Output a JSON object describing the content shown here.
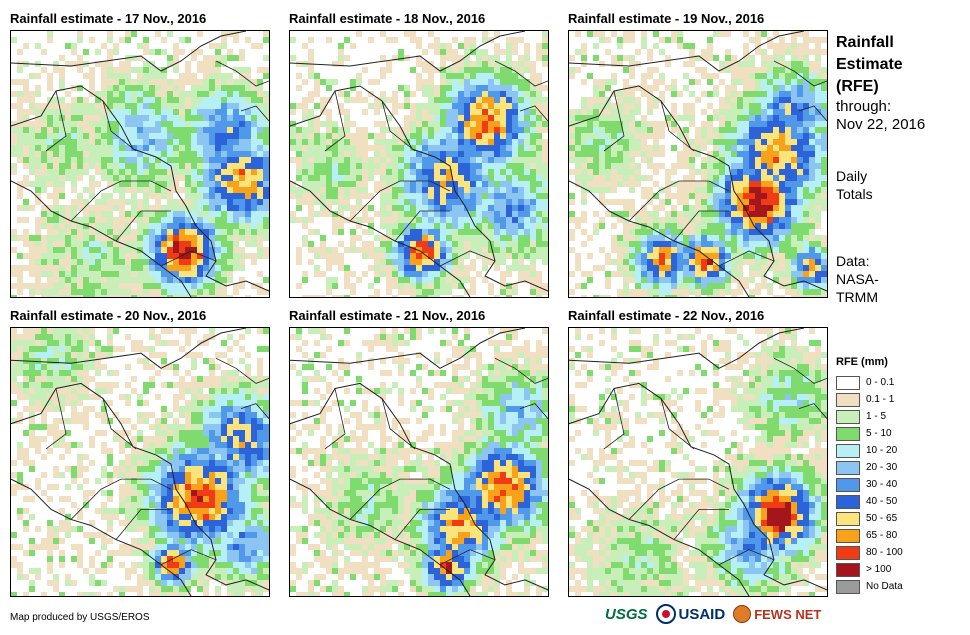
{
  "panels": [
    {
      "title": "Rainfall estimate - 17 Nov., 2016"
    },
    {
      "title": "Rainfall estimate - 18 Nov., 2016"
    },
    {
      "title": "Rainfall estimate - 19 Nov., 2016"
    },
    {
      "title": "Rainfall estimate - 20 Nov., 2016"
    },
    {
      "title": "Rainfall estimate - 21 Nov., 2016"
    },
    {
      "title": "Rainfall estimate - 22 Nov., 2016"
    }
  ],
  "side": {
    "title_lines": [
      "Rainfall",
      "Estimate",
      "(RFE)"
    ],
    "through_label": "through:",
    "through_date": "Nov 22, 2016",
    "daily_lines": [
      "Daily",
      "Totals"
    ],
    "data_lines": [
      "Data:",
      "NASA-",
      "TRMM"
    ]
  },
  "legend": {
    "title": "RFE (mm)",
    "items": [
      {
        "label": "0 - 0.1",
        "color": "#ffffff"
      },
      {
        "label": "0.1 - 1",
        "color": "#f1dfc1"
      },
      {
        "label": "1 - 5",
        "color": "#c8eeb9"
      },
      {
        "label": "5 - 10",
        "color": "#7fdb6e"
      },
      {
        "label": "10 - 20",
        "color": "#b6f0f6"
      },
      {
        "label": "20 - 30",
        "color": "#8cc4f2"
      },
      {
        "label": "30 - 40",
        "color": "#4f98ea"
      },
      {
        "label": "40 - 50",
        "color": "#2d63d8"
      },
      {
        "label": "50 - 65",
        "color": "#fbe47b"
      },
      {
        "label": "65 - 80",
        "color": "#f7a21a"
      },
      {
        "label": "80 - 100",
        "color": "#ef3b16"
      },
      {
        "label": "> 100",
        "color": "#a3171c"
      },
      {
        "label": "No Data",
        "color": "#9b9b9b"
      }
    ]
  },
  "credit": "Map produced by USGS/EROS",
  "logos": {
    "usgs": "USGS",
    "usaid": "USAID",
    "fews": "FEWS NET"
  },
  "rain_cells": [
    [
      {
        "lon": 0.66,
        "lat": 0.82,
        "level": 11,
        "spread": 0.1
      },
      {
        "lon": 0.88,
        "lat": 0.55,
        "level": 9,
        "spread": 0.12
      },
      {
        "lon": 0.82,
        "lat": 0.38,
        "level": 7,
        "spread": 0.12
      },
      {
        "lon": 0.5,
        "lat": 0.38,
        "level": 5,
        "spread": 0.14
      },
      {
        "lon": 0.2,
        "lat": 0.4,
        "level": 3,
        "spread": 0.12
      },
      {
        "lon": 0.3,
        "lat": 0.85,
        "level": 3,
        "spread": 0.14
      }
    ],
    [
      {
        "lon": 0.75,
        "lat": 0.33,
        "level": 10,
        "spread": 0.12
      },
      {
        "lon": 0.6,
        "lat": 0.55,
        "level": 8,
        "spread": 0.14
      },
      {
        "lon": 0.5,
        "lat": 0.82,
        "level": 10,
        "spread": 0.08
      },
      {
        "lon": 0.85,
        "lat": 0.65,
        "level": 6,
        "spread": 0.12
      },
      {
        "lon": 0.15,
        "lat": 0.5,
        "level": 3,
        "spread": 0.12
      }
    ],
    [
      {
        "lon": 0.72,
        "lat": 0.63,
        "level": 11,
        "spread": 0.12
      },
      {
        "lon": 0.8,
        "lat": 0.45,
        "level": 9,
        "spread": 0.14
      },
      {
        "lon": 0.85,
        "lat": 0.3,
        "level": 7,
        "spread": 0.12
      },
      {
        "lon": 0.52,
        "lat": 0.85,
        "level": 10,
        "spread": 0.07
      },
      {
        "lon": 0.35,
        "lat": 0.85,
        "level": 9,
        "spread": 0.08
      },
      {
        "lon": 0.93,
        "lat": 0.88,
        "level": 9,
        "spread": 0.06
      },
      {
        "lon": 0.12,
        "lat": 0.4,
        "level": 3,
        "spread": 0.12
      }
    ],
    [
      {
        "lon": 0.72,
        "lat": 0.62,
        "level": 10,
        "spread": 0.14
      },
      {
        "lon": 0.88,
        "lat": 0.4,
        "level": 8,
        "spread": 0.12
      },
      {
        "lon": 0.62,
        "lat": 0.87,
        "level": 10,
        "spread": 0.06
      },
      {
        "lon": 0.9,
        "lat": 0.8,
        "level": 6,
        "spread": 0.1
      },
      {
        "lon": 0.15,
        "lat": 0.1,
        "level": 3,
        "spread": 0.12
      }
    ],
    [
      {
        "lon": 0.82,
        "lat": 0.58,
        "level": 10,
        "spread": 0.12
      },
      {
        "lon": 0.65,
        "lat": 0.72,
        "level": 9,
        "spread": 0.12
      },
      {
        "lon": 0.6,
        "lat": 0.88,
        "level": 10,
        "spread": 0.07
      },
      {
        "lon": 0.88,
        "lat": 0.3,
        "level": 5,
        "spread": 0.12
      },
      {
        "lon": 0.3,
        "lat": 0.65,
        "level": 3,
        "spread": 0.14
      }
    ],
    [
      {
        "lon": 0.8,
        "lat": 0.68,
        "level": 11,
        "spread": 0.11
      },
      {
        "lon": 0.7,
        "lat": 0.8,
        "level": 6,
        "spread": 0.12
      },
      {
        "lon": 0.85,
        "lat": 0.25,
        "level": 4,
        "spread": 0.12
      },
      {
        "lon": 0.25,
        "lat": 0.85,
        "level": 3,
        "spread": 0.14
      }
    ]
  ]
}
